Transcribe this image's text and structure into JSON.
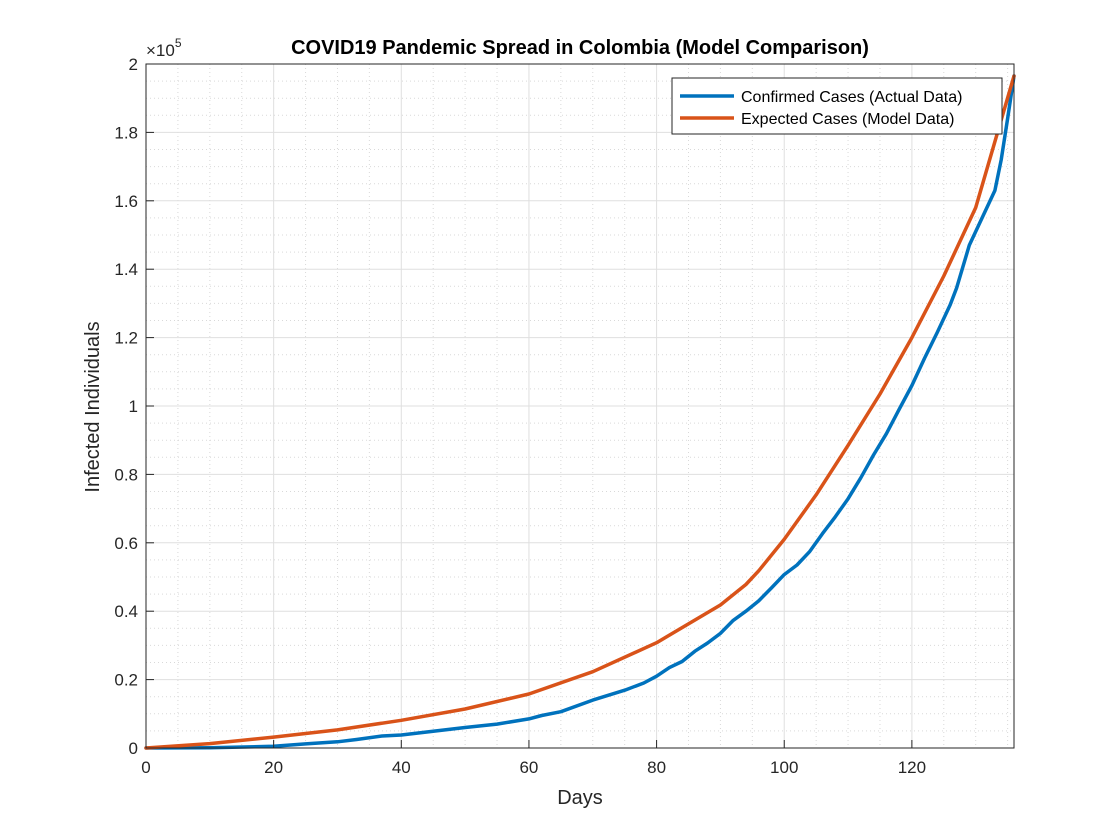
{
  "chart_data": {
    "type": "line",
    "title": "COVID19 Pandemic Spread in Colombia (Model Comparison)",
    "xlabel": "Days",
    "ylabel": "Infected Individuals",
    "xlim": [
      0,
      136
    ],
    "ylim": [
      0,
      200000
    ],
    "y_exponent_label": "×10",
    "y_exponent_power": "5",
    "x_ticks": [
      0,
      20,
      40,
      60,
      80,
      100,
      120
    ],
    "x_tick_labels": [
      "0",
      "20",
      "40",
      "60",
      "80",
      "100",
      "120"
    ],
    "y_ticks": [
      0,
      20000,
      40000,
      60000,
      80000,
      100000,
      120000,
      140000,
      160000,
      180000,
      200000
    ],
    "y_tick_labels": [
      "0",
      "0.2",
      "0.4",
      "0.6",
      "0.8",
      "1",
      "1.2",
      "1.4",
      "1.6",
      "1.8",
      "2"
    ],
    "grid": "major and minor (dotted)",
    "legend_position": "top-right",
    "series": [
      {
        "name": "Confirmed Cases (Actual Data)",
        "color": "#0072BD",
        "x": [
          0,
          10,
          20,
          25,
          30,
          33,
          37,
          40,
          45,
          50,
          55,
          60,
          62,
          65,
          70,
          75,
          78,
          80,
          82,
          84,
          86,
          88,
          90,
          92,
          94,
          96,
          98,
          100,
          102,
          104,
          106,
          108,
          110,
          112,
          114,
          116,
          118,
          120,
          122,
          124,
          126,
          127,
          129,
          131,
          133,
          134,
          135,
          136
        ],
        "y": [
          0,
          100,
          500,
          1200,
          1800,
          2500,
          3500,
          3800,
          4900,
          6000,
          7000,
          8500,
          9500,
          10600,
          14000,
          16900,
          19000,
          21000,
          23500,
          25300,
          28300,
          30700,
          33500,
          37300,
          40000,
          43000,
          46800,
          50700,
          53500,
          57500,
          62700,
          67600,
          72900,
          79000,
          85700,
          91900,
          99000,
          106000,
          114000,
          121600,
          129600,
          134500,
          147000,
          155000,
          163000,
          172000,
          184000,
          196500
        ]
      },
      {
        "name": "Expected Cases (Model Data)",
        "color": "#D95319",
        "x": [
          0,
          10,
          20,
          30,
          40,
          50,
          60,
          70,
          80,
          90,
          94,
          96,
          100,
          105,
          110,
          115,
          120,
          125,
          130,
          136
        ],
        "y": [
          0,
          1300,
          3200,
          5300,
          8100,
          11400,
          15800,
          22300,
          30800,
          41800,
          47800,
          51800,
          61000,
          74000,
          88500,
          103500,
          120000,
          138000,
          158000,
          196500
        ]
      }
    ]
  }
}
